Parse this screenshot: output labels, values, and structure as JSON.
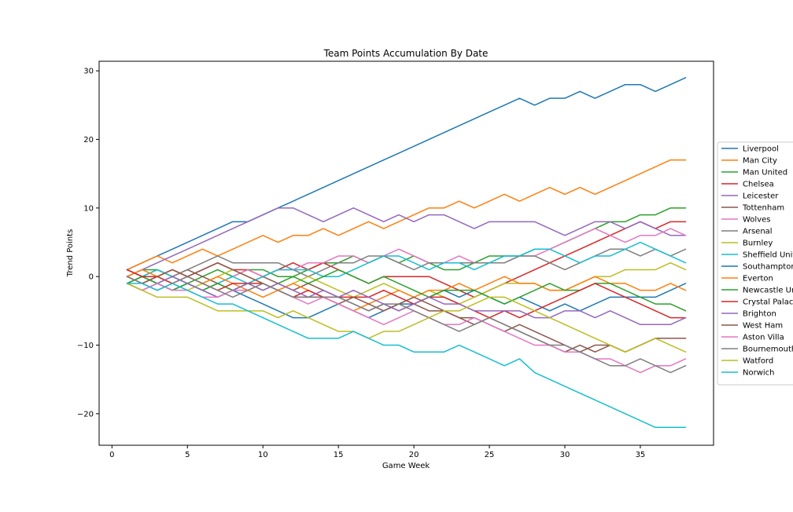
{
  "chart_data": {
    "type": "line",
    "title": "Team Points Accumulation By Date",
    "xlabel": "Game Week",
    "ylabel": "Trend Points",
    "xlim": [
      -0.85,
      39.85
    ],
    "ylim": [
      -24.6,
      31.4
    ],
    "xticks": [
      0,
      5,
      10,
      15,
      20,
      25,
      30,
      35
    ],
    "yticks": [
      -20,
      -10,
      0,
      10,
      20,
      30
    ],
    "ytick_labels": [
      "−20",
      "−10",
      "0",
      "10",
      "20",
      "30"
    ],
    "grid": false,
    "legend_position": "right, outside plot, vertically centered",
    "x": [
      1,
      2,
      3,
      4,
      5,
      6,
      7,
      8,
      9,
      10,
      11,
      12,
      13,
      14,
      15,
      16,
      17,
      18,
      19,
      20,
      21,
      22,
      23,
      24,
      25,
      26,
      27,
      28,
      29,
      30,
      31,
      32,
      33,
      34,
      35,
      36,
      37,
      38
    ],
    "series": [
      {
        "name": "Liverpool",
        "color": "#1f77b4",
        "values": [
          1,
          2,
          3,
          4,
          5,
          6,
          7,
          8,
          8,
          9,
          10,
          11,
          12,
          13,
          14,
          15,
          16,
          17,
          18,
          19,
          20,
          21,
          22,
          23,
          24,
          25,
          26,
          25,
          26,
          26,
          27,
          26,
          27,
          28,
          28,
          27,
          28,
          29
        ]
      },
      {
        "name": "Man City",
        "color": "#ff7f0e",
        "values": [
          1,
          2,
          3,
          2,
          3,
          4,
          3,
          4,
          5,
          6,
          5,
          6,
          6,
          7,
          6,
          7,
          8,
          7,
          8,
          9,
          10,
          10,
          11,
          10,
          11,
          12,
          11,
          12,
          13,
          12,
          13,
          12,
          13,
          14,
          15,
          16,
          17,
          17
        ]
      },
      {
        "name": "Man United",
        "color": "#2ca02c",
        "values": [
          0,
          1,
          1,
          0,
          -1,
          0,
          1,
          0,
          1,
          1,
          0,
          0,
          1,
          2,
          2,
          3,
          2,
          3,
          2,
          3,
          2,
          1,
          1,
          2,
          3,
          3,
          3,
          4,
          4,
          5,
          6,
          7,
          8,
          8,
          9,
          9,
          10,
          10
        ]
      },
      {
        "name": "Chelsea",
        "color": "#d62728",
        "values": [
          0,
          -1,
          0,
          1,
          0,
          1,
          2,
          1,
          1,
          0,
          1,
          2,
          1,
          2,
          1,
          0,
          -1,
          0,
          0,
          0,
          0,
          -1,
          -2,
          -3,
          -2,
          -1,
          0,
          1,
          2,
          3,
          4,
          5,
          6,
          7,
          8,
          7,
          8,
          8
        ]
      },
      {
        "name": "Leicester",
        "color": "#9467bd",
        "values": [
          0,
          1,
          2,
          3,
          4,
          5,
          6,
          7,
          8,
          9,
          10,
          10,
          9,
          8,
          9,
          10,
          9,
          8,
          9,
          8,
          9,
          9,
          8,
          7,
          8,
          8,
          8,
          8,
          7,
          6,
          7,
          8,
          8,
          7,
          8,
          7,
          6,
          6
        ]
      },
      {
        "name": "Tottenham",
        "color": "#8c564b",
        "values": [
          1,
          0,
          1,
          0,
          1,
          0,
          -1,
          -2,
          -1,
          0,
          -1,
          -2,
          -1,
          -2,
          -3,
          -4,
          -5,
          -4,
          -5,
          -4,
          -5,
          -5,
          -6,
          -7,
          -6,
          -7,
          -8,
          -9,
          -10,
          -11,
          -10,
          -11,
          -10,
          -11,
          -10,
          -9,
          -9,
          -9
        ]
      },
      {
        "name": "Wolves",
        "color": "#e377c2",
        "values": [
          -1,
          -2,
          -1,
          -2,
          -1,
          -2,
          -1,
          0,
          1,
          0,
          1,
          1,
          2,
          2,
          3,
          3,
          2,
          3,
          4,
          3,
          2,
          2,
          3,
          2,
          2,
          2,
          3,
          3,
          4,
          5,
          6,
          7,
          6,
          5,
          6,
          6,
          7,
          6
        ]
      },
      {
        "name": "Arsenal",
        "color": "#7f7f7f",
        "values": [
          1,
          0,
          -1,
          0,
          1,
          2,
          3,
          2,
          2,
          2,
          2,
          1,
          0,
          1,
          2,
          2,
          3,
          3,
          2,
          1,
          2,
          2,
          2,
          2,
          2,
          2,
          3,
          3,
          2,
          1,
          2,
          3,
          4,
          4,
          3,
          4,
          3,
          4
        ]
      },
      {
        "name": "Burnley",
        "color": "#bcbd22",
        "values": [
          0,
          -1,
          0,
          -1,
          -2,
          -1,
          0,
          1,
          0,
          -1,
          -2,
          -1,
          0,
          -1,
          -2,
          -3,
          -2,
          -1,
          -2,
          -3,
          -2,
          -3,
          -4,
          -3,
          -2,
          -1,
          -1,
          -1,
          -2,
          -2,
          -1,
          0,
          0,
          1,
          1,
          1,
          2,
          1
        ]
      },
      {
        "name": "Sheffield United",
        "color": "#17becf",
        "values": [
          -1,
          0,
          1,
          0,
          -1,
          -2,
          -1,
          0,
          -1,
          0,
          1,
          1,
          1,
          0,
          0,
          1,
          2,
          3,
          3,
          2,
          1,
          2,
          2,
          1,
          2,
          3,
          3,
          4,
          4,
          3,
          2,
          3,
          3,
          4,
          5,
          4,
          3,
          2
        ]
      },
      {
        "name": "Southampton",
        "color": "#1f77b4",
        "values": [
          -1,
          0,
          -1,
          -2,
          -1,
          -2,
          -3,
          -2,
          -3,
          -4,
          -5,
          -6,
          -6,
          -5,
          -4,
          -5,
          -6,
          -5,
          -4,
          -4,
          -3,
          -2,
          -3,
          -2,
          -3,
          -4,
          -3,
          -4,
          -5,
          -4,
          -5,
          -4,
          -3,
          -3,
          -3,
          -3,
          -2,
          -1
        ]
      },
      {
        "name": "Everton",
        "color": "#ff7f0e",
        "values": [
          0,
          1,
          0,
          1,
          0,
          -1,
          0,
          -1,
          -2,
          -3,
          -2,
          -1,
          -2,
          -3,
          -4,
          -5,
          -4,
          -3,
          -2,
          -3,
          -2,
          -2,
          -1,
          -2,
          -1,
          0,
          -1,
          -1,
          -2,
          -2,
          -1,
          0,
          -1,
          -1,
          -2,
          -2,
          -1,
          -2
        ]
      },
      {
        "name": "Newcastle United",
        "color": "#2ca02c",
        "values": [
          -1,
          0,
          -1,
          -2,
          -1,
          -2,
          -1,
          -2,
          -1,
          -2,
          -1,
          0,
          -1,
          0,
          1,
          0,
          -1,
          0,
          -1,
          -2,
          -3,
          -2,
          -2,
          -2,
          -3,
          -4,
          -3,
          -2,
          -1,
          -2,
          -2,
          -1,
          -1,
          -2,
          -3,
          -4,
          -4,
          -5
        ]
      },
      {
        "name": "Crystal Palace",
        "color": "#d62728",
        "values": [
          1,
          0,
          0,
          -1,
          0,
          -1,
          -2,
          -1,
          -1,
          -1,
          -2,
          -3,
          -2,
          -3,
          -3,
          -3,
          -3,
          -2,
          -3,
          -4,
          -3,
          -3,
          -4,
          -5,
          -6,
          -5,
          -6,
          -5,
          -4,
          -3,
          -2,
          -1,
          -2,
          -3,
          -4,
          -5,
          -6,
          -6
        ]
      },
      {
        "name": "Brighton",
        "color": "#9467bd",
        "values": [
          -1,
          -2,
          -1,
          0,
          -1,
          -2,
          -3,
          -2,
          -1,
          -2,
          -1,
          -2,
          -3,
          -2,
          -3,
          -2,
          -3,
          -4,
          -5,
          -4,
          -3,
          -4,
          -4,
          -5,
          -5,
          -5,
          -5,
          -6,
          -6,
          -5,
          -5,
          -6,
          -5,
          -6,
          -7,
          -7,
          -7,
          -6
        ]
      },
      {
        "name": "West Ham",
        "color": "#8c564b",
        "values": [
          0,
          -1,
          0,
          1,
          0,
          1,
          2,
          1,
          0,
          -1,
          -2,
          -3,
          -3,
          -3,
          -4,
          -3,
          -4,
          -5,
          -4,
          -3,
          -4,
          -5,
          -6,
          -6,
          -7,
          -8,
          -7,
          -8,
          -9,
          -10,
          -11,
          -10,
          -10,
          -11,
          -10,
          -9,
          -9,
          -9
        ]
      },
      {
        "name": "Aston Villa",
        "color": "#e377c2",
        "values": [
          -1,
          -2,
          -1,
          -2,
          -2,
          -3,
          -3,
          -2,
          -2,
          -1,
          -2,
          -3,
          -4,
          -3,
          -4,
          -5,
          -6,
          -7,
          -6,
          -5,
          -6,
          -7,
          -7,
          -6,
          -7,
          -8,
          -9,
          -10,
          -10,
          -11,
          -11,
          -12,
          -12,
          -13,
          -14,
          -13,
          -13,
          -12
        ]
      },
      {
        "name": "Bournemouth",
        "color": "#7f7f7f",
        "values": [
          0,
          -1,
          -2,
          -1,
          0,
          -1,
          -2,
          -3,
          -2,
          -1,
          -2,
          -3,
          -3,
          -3,
          -3,
          -4,
          -5,
          -4,
          -4,
          -5,
          -6,
          -7,
          -8,
          -7,
          -6,
          -7,
          -8,
          -9,
          -10,
          -10,
          -11,
          -12,
          -13,
          -13,
          -12,
          -13,
          -14,
          -13
        ]
      },
      {
        "name": "Watford",
        "color": "#bcbd22",
        "values": [
          -1,
          -2,
          -3,
          -3,
          -3,
          -4,
          -5,
          -5,
          -5,
          -5,
          -6,
          -5,
          -6,
          -7,
          -8,
          -8,
          -9,
          -8,
          -8,
          -7,
          -6,
          -5,
          -5,
          -4,
          -3,
          -3,
          -4,
          -5,
          -6,
          -7,
          -8,
          -9,
          -10,
          -11,
          -10,
          -9,
          -10,
          -11
        ]
      },
      {
        "name": "Norwich",
        "color": "#17becf",
        "values": [
          -1,
          -1,
          -2,
          -1,
          -2,
          -3,
          -4,
          -4,
          -5,
          -6,
          -7,
          -8,
          -9,
          -9,
          -9,
          -8,
          -9,
          -10,
          -10,
          -11,
          -11,
          -11,
          -10,
          -11,
          -12,
          -13,
          -12,
          -14,
          -15,
          -16,
          -17,
          -18,
          -19,
          -20,
          -21,
          -22,
          -22,
          -22
        ]
      }
    ]
  }
}
